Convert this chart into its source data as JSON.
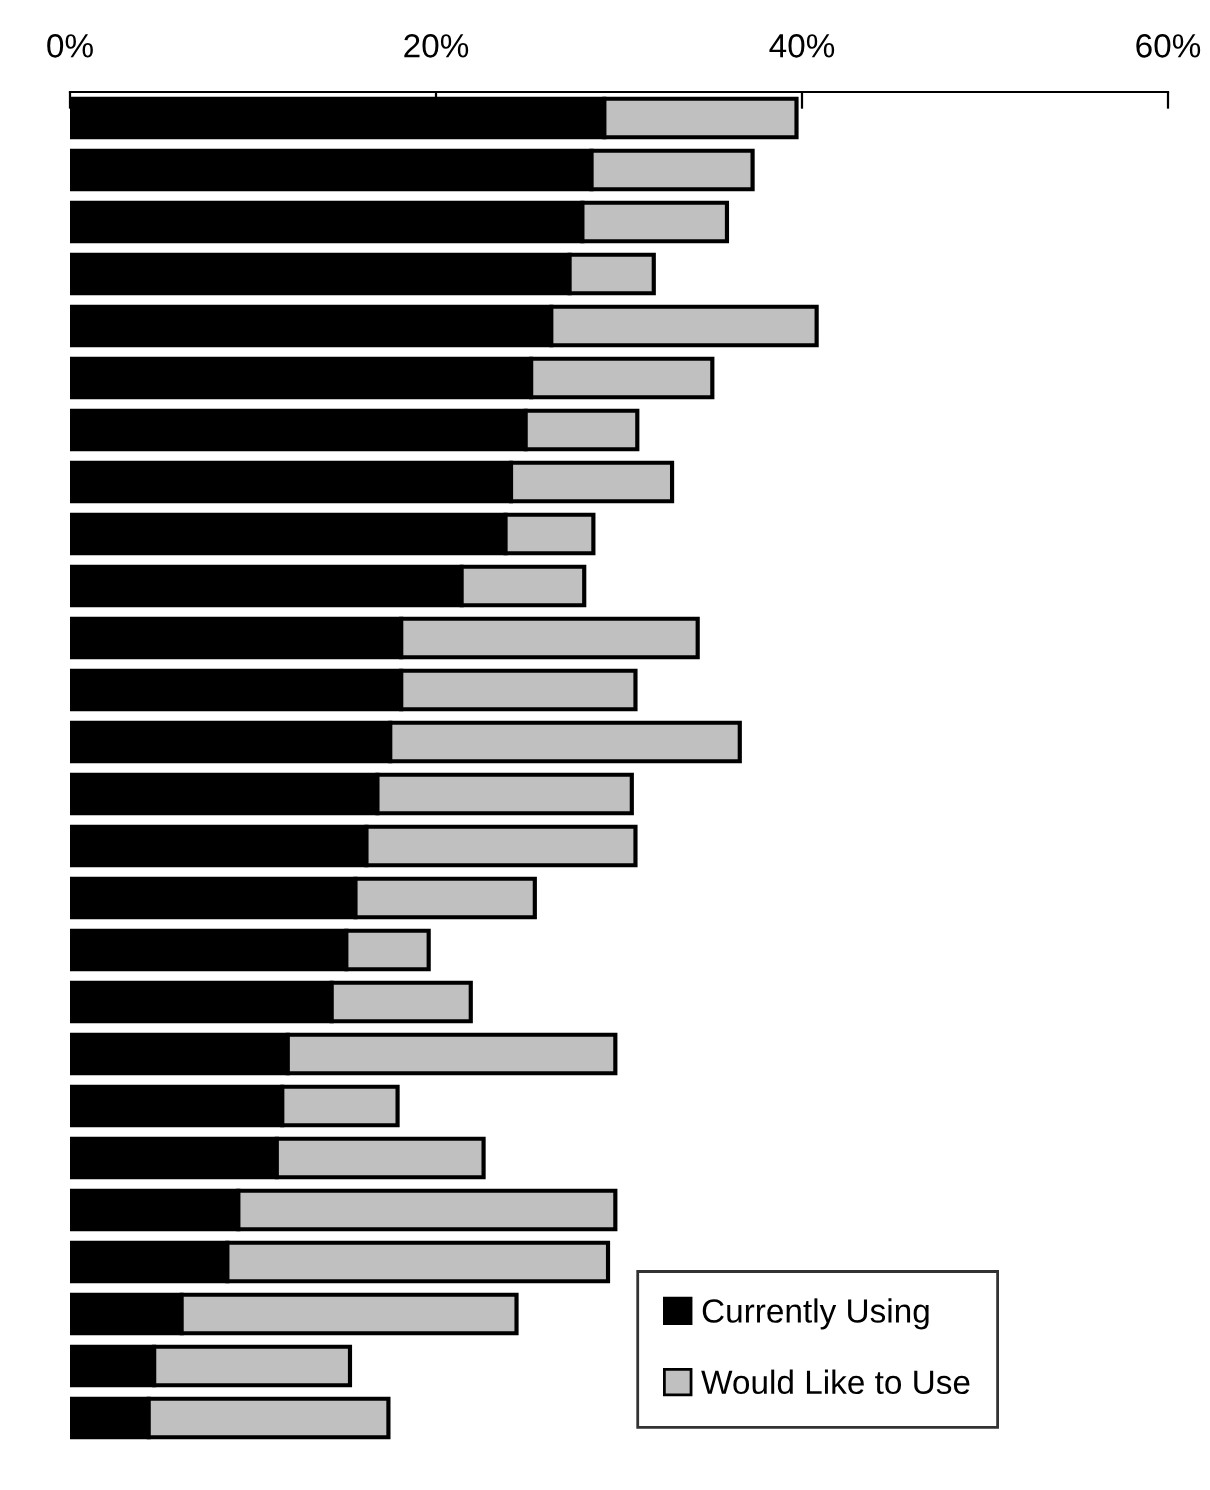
{
  "chart_data": {
    "type": "bar",
    "orientation": "horizontal",
    "stacked": true,
    "tick_labels": "x",
    "legend": "bottom right",
    "grid": false,
    "categories": [
      null,
      null,
      null,
      null,
      null,
      null,
      null,
      null,
      null,
      null,
      null,
      null,
      null,
      null,
      null,
      null,
      null,
      null,
      null,
      null,
      null,
      null,
      null,
      null,
      null,
      null
    ],
    "xlim": [
      0,
      60
    ],
    "xticks": [
      {
        "value": 0,
        "label": "0%"
      },
      {
        "value": 20,
        "label": "20%"
      },
      {
        "value": 40,
        "label": "40%"
      },
      {
        "value": 60,
        "label": "60%"
      }
    ],
    "series": [
      {
        "name": "Currently Using",
        "color": "#000000",
        "values": [
          29.2,
          28.5,
          28.0,
          27.3,
          26.3,
          25.2,
          24.9,
          24.1,
          23.8,
          21.4,
          18.1,
          18.1,
          17.5,
          16.8,
          16.2,
          15.6,
          15.1,
          14.3,
          11.9,
          11.6,
          11.3,
          9.2,
          8.6,
          6.1,
          4.6,
          4.3
        ]
      },
      {
        "name": "Would Like to Use",
        "color": "#c0c0c0",
        "values": [
          10.5,
          8.8,
          7.9,
          4.6,
          14.5,
          9.9,
          6.1,
          8.8,
          4.8,
          6.7,
          16.2,
          12.8,
          19.1,
          13.9,
          14.7,
          9.8,
          4.5,
          7.6,
          17.9,
          6.3,
          11.3,
          20.6,
          20.8,
          18.3,
          10.7,
          13.1
        ]
      }
    ]
  }
}
